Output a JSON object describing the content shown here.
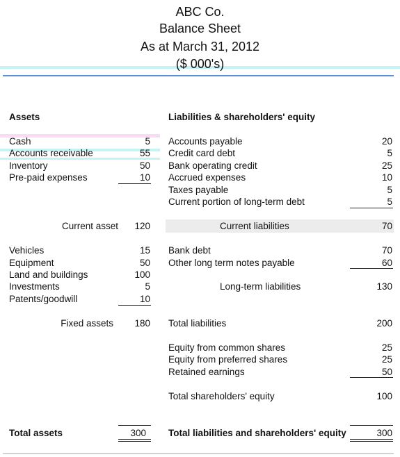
{
  "header": {
    "company": "ABC Co.",
    "statement": "Balance Sheet",
    "date": "As at March 31, 2012",
    "units": "($ 000's)"
  },
  "assets": {
    "heading": "Assets",
    "current_items": [
      {
        "label": "Cash",
        "value": "5"
      },
      {
        "label": "Accounts receivable",
        "value": "55"
      },
      {
        "label": "Inventory",
        "value": "50"
      },
      {
        "label": "Pre-paid expenses",
        "value": "10"
      }
    ],
    "current_total": {
      "label": "Current asset",
      "value": "120"
    },
    "fixed_items": [
      {
        "label": "Vehicles",
        "value": "15"
      },
      {
        "label": "Equipment",
        "value": "50"
      },
      {
        "label": "Land and buildings",
        "value": "100"
      },
      {
        "label": "Investments",
        "value": "5"
      },
      {
        "label": "Patents/goodwill",
        "value": "10"
      }
    ],
    "fixed_total": {
      "label": "Fixed assets",
      "value": "180"
    },
    "total": {
      "label": "Total assets",
      "value": "300"
    }
  },
  "liabilities": {
    "heading": "Liabilities & shareholders' equity",
    "current_items": [
      {
        "label": "Accounts payable",
        "value": "20"
      },
      {
        "label": "Credit card debt",
        "value": "5"
      },
      {
        "label": "Bank operating credit",
        "value": "25"
      },
      {
        "label": "Accrued expenses",
        "value": "10"
      },
      {
        "label": "Taxes payable",
        "value": "5"
      },
      {
        "label": "Current portion of long-term debt",
        "value": "5"
      }
    ],
    "current_total": {
      "label": "Current liabilities",
      "value": "70"
    },
    "longterm_items": [
      {
        "label": "Bank debt",
        "value": "70"
      },
      {
        "label": "Other long term notes payable",
        "value": "60"
      }
    ],
    "longterm_total": {
      "label": "Long-term liabilities",
      "value": "130"
    },
    "total_liabilities": {
      "label": "Total liabilities",
      "value": "200"
    },
    "equity_items": [
      {
        "label": "Equity from common shares",
        "value": "25"
      },
      {
        "label": "Equity from preferred shares",
        "value": "25"
      },
      {
        "label": "Retained earnings",
        "value": "50"
      }
    ],
    "equity_total": {
      "label": "Total shareholders' equity",
      "value": "100"
    },
    "grand_total": {
      "label": "Total liabilities and shareholders' equity",
      "value": "300"
    }
  },
  "colors": {
    "header_rule": "#5b8fd6",
    "cyan_highlight": "#bff3f6",
    "pink_highlight": "#f9dcf3",
    "band_gray": "#ececec"
  }
}
